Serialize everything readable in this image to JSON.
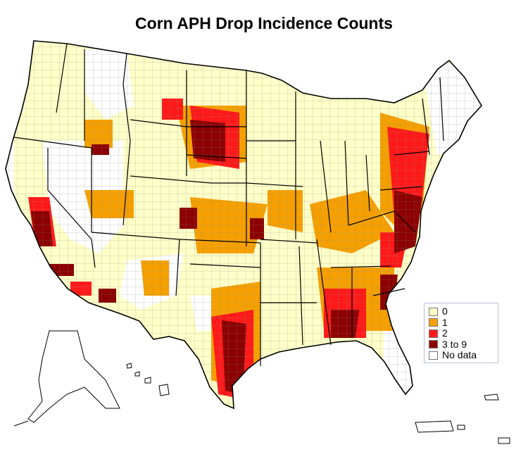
{
  "title": "Corn APH Drop Incidence Counts",
  "legend": {
    "items": [
      {
        "label": "0",
        "color": "#ffffc8"
      },
      {
        "label": "1",
        "color": "#f5a000"
      },
      {
        "label": "2",
        "color": "#ff1a1a"
      },
      {
        "label": "3 to 9",
        "color": "#8c0000"
      },
      {
        "label": "No data",
        "color": "#ffffff"
      }
    ]
  },
  "colors": {
    "outline": "#000000",
    "county_line": "#777777"
  }
}
